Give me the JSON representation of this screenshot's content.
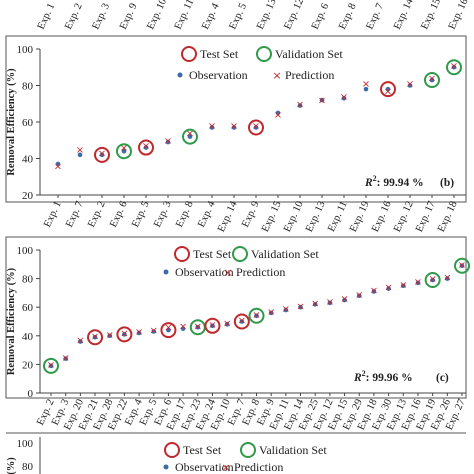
{
  "chart_data": [
    {
      "type": "scatter",
      "panel": "(b)",
      "r2_prefix": "R",
      "r2_sup": "2",
      "r2_value": ": 99.94 %",
      "ylabel": "Removal Efficiency (%)",
      "ylim": [
        20,
        100
      ],
      "yticks": [
        "20",
        "40",
        "60",
        "80",
        "100"
      ],
      "top_labels": [
        "Exp. 1",
        "Exp. 2",
        "Exp. 3",
        "Exp. 9",
        "Exp. 10",
        "Exp. 11",
        "Exp. 4",
        "Exp. 5",
        "Exp. 13",
        "Exp. 12",
        "Exp. 6",
        "Exp. 8",
        "Exp. 7",
        "Exp. 14",
        "Exp. 15",
        "Exp. 16"
      ],
      "categories": [
        "Exp. 1",
        "Exp. 7",
        "Exp. 2",
        "Exp. 6",
        "Exp. 5",
        "Exp. 3",
        "Exp. 8",
        "Exp. 4",
        "Exp. 14",
        "Exp. 9",
        "Exp. 15",
        "Exp. 10",
        "Exp. 13",
        "Exp. 11",
        "Exp. 19",
        "Exp. 16",
        "Exp. 12",
        "Exp. 17",
        "Exp. 18"
      ],
      "series": [
        {
          "name": "Observation",
          "values": [
            37,
            42,
            42,
            44,
            46,
            49,
            52,
            57,
            57,
            57,
            65,
            69,
            72,
            73,
            78,
            78,
            80,
            83,
            90
          ]
        },
        {
          "name": "Prediction",
          "values": [
            36,
            45,
            43,
            46,
            47,
            50,
            54,
            58,
            58,
            58,
            64,
            70,
            72,
            74,
            81,
            77,
            81,
            84,
            91
          ]
        }
      ],
      "test_set": [
        "Exp. 2",
        "Exp. 5",
        "Exp. 9",
        "Exp. 16"
      ],
      "validation_set": [
        "Exp. 6",
        "Exp. 8",
        "Exp. 17",
        "Exp. 18"
      ]
    },
    {
      "type": "scatter",
      "panel": "(c)",
      "r2_prefix": "R",
      "r2_sup": "2",
      "r2_value": ": 99.96 %",
      "ylabel": "Removal Efficiency (%)",
      "ylim": [
        0,
        100
      ],
      "yticks": [
        "0",
        "20",
        "40",
        "60",
        "80",
        "100"
      ],
      "categories": [
        "Exp. 2",
        "Exp. 3",
        "Exp. 20",
        "Exp. 21",
        "Exp. 28",
        "Exp. 22",
        "Exp. 4",
        "Exp. 5",
        "Exp. 6",
        "Exp. 17",
        "Exp. 23",
        "Exp. 24",
        "Exp. 10",
        "Exp. 7",
        "Exp. 8",
        "Exp. 9",
        "Exp. 11",
        "Exp. 14",
        "Exp. 25",
        "Exp. 12",
        "Exp. 15",
        "Exp. 29",
        "Exp. 18",
        "Exp. 30",
        "Exp. 13",
        "Exp. 16",
        "Exp. 19",
        "Exp. 26",
        "Exp. 27"
      ],
      "series": [
        {
          "name": "Observation",
          "values": [
            19,
            24,
            36,
            39,
            40,
            41,
            42,
            43,
            44,
            45,
            46,
            47,
            48,
            50,
            54,
            56,
            58,
            60,
            62,
            63,
            65,
            68,
            71,
            73,
            75,
            77,
            79,
            80,
            89
          ]
        },
        {
          "name": "Prediction",
          "values": [
            20,
            25,
            37,
            40,
            41,
            42,
            43,
            44,
            46,
            47,
            47,
            48,
            49,
            51,
            55,
            57,
            59,
            61,
            63,
            64,
            66,
            69,
            72,
            74,
            76,
            78,
            80,
            81,
            90
          ]
        }
      ],
      "test_set": [
        "Exp. 21",
        "Exp. 22",
        "Exp. 6",
        "Exp. 24",
        "Exp. 7"
      ],
      "validation_set": [
        "Exp. 2",
        "Exp. 23",
        "Exp. 8",
        "Exp. 19",
        "Exp. 27"
      ]
    },
    {
      "type": "scatter",
      "panel": "",
      "ylabel": "(%)",
      "yticks": [
        "100",
        "80"
      ]
    }
  ],
  "legend": {
    "test_set": "Test Set",
    "validation_set": "Validation Set",
    "observation": "Observation",
    "prediction": "Prediction"
  },
  "colors": {
    "test": "#c0282d",
    "validation": "#2e9a4a",
    "observation": "#3d6aa8",
    "prediction": "#c0282d"
  }
}
